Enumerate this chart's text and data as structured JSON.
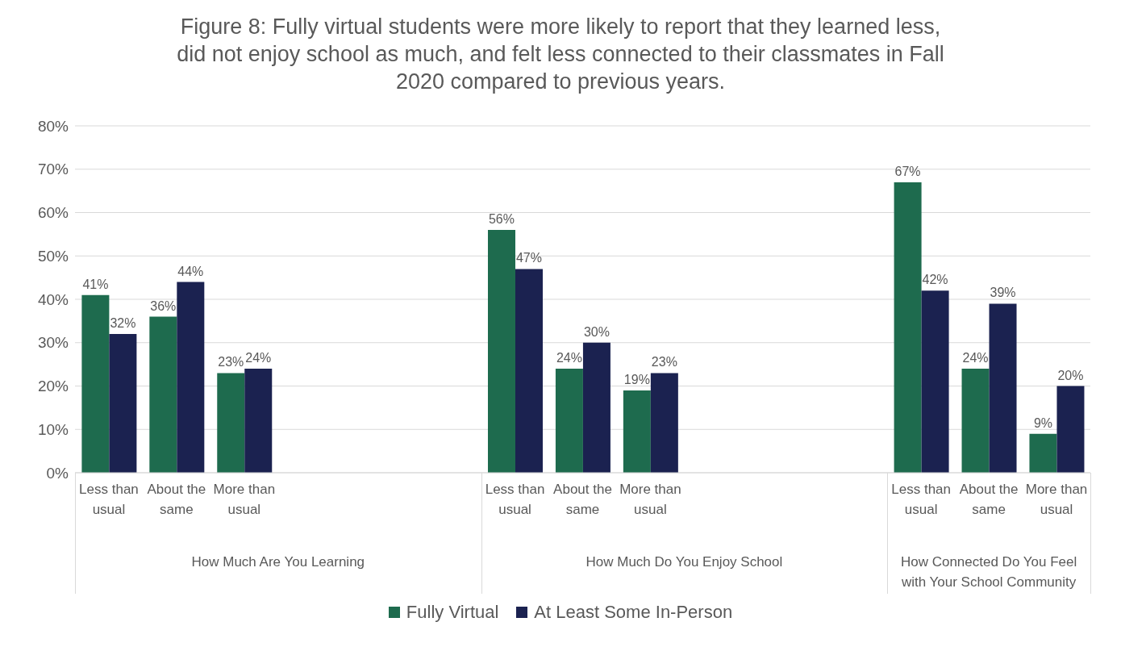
{
  "chart_data": {
    "type": "bar",
    "title": "Figure 8: Fully virtual students were more likely to report that they learned less, did not enjoy school as much, and felt less connected to their classmates in Fall 2020 compared to previous years.",
    "categories": [
      "Less than usual",
      "About the same",
      "More than usual",
      null,
      null,
      null,
      "Less than usual",
      "About the same",
      "More than usual",
      null,
      null,
      null,
      "Less than usual",
      "About the same",
      "More than usual"
    ],
    "annotations": [
      "How Much Are You Learning",
      "How Much Do You Enjoy School",
      "How Connected Do You Feel with Your School Community"
    ],
    "series": [
      {
        "name": "Fully Virtual",
        "color": "#1e6b4e",
        "values": [
          41,
          36,
          23,
          null,
          null,
          null,
          56,
          24,
          19,
          null,
          null,
          null,
          67,
          24,
          9
        ],
        "value_labels": [
          "41%",
          "36%",
          "23%",
          null,
          null,
          null,
          "56%",
          "24%",
          "19%",
          null,
          null,
          null,
          "67%",
          "24%",
          "9%"
        ]
      },
      {
        "name": "At Least Some In-Person",
        "color": "#1b2250",
        "values": [
          32,
          44,
          24,
          null,
          null,
          null,
          47,
          30,
          23,
          null,
          null,
          null,
          42,
          39,
          20
        ],
        "value_labels": [
          "32%",
          "44%",
          "24%",
          null,
          null,
          null,
          "47%",
          "30%",
          "23%",
          null,
          null,
          null,
          "42%",
          "39%",
          "20%"
        ]
      }
    ],
    "ylim": [
      0,
      80
    ],
    "yticks": [
      {
        "value": 0,
        "label": "0%"
      },
      {
        "value": 10,
        "label": "10%"
      },
      {
        "value": 20,
        "label": "20%"
      },
      {
        "value": 30,
        "label": "30%"
      },
      {
        "value": 40,
        "label": "40%"
      },
      {
        "value": 50,
        "label": "50%"
      },
      {
        "value": 60,
        "label": "60%"
      },
      {
        "value": 70,
        "label": "70%"
      },
      {
        "value": 80,
        "label": "80%"
      }
    ],
    "grid": "y",
    "legend": "bottom"
  }
}
